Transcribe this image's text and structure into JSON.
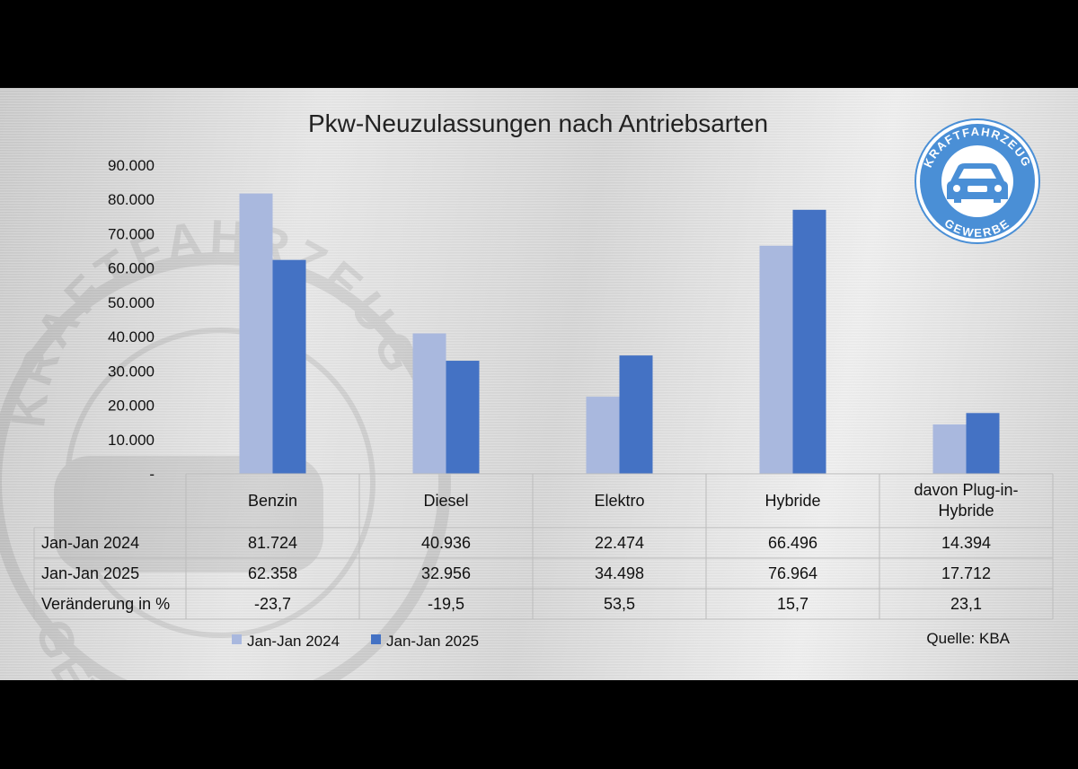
{
  "chart_data": {
    "type": "bar",
    "title": "Pkw-Neuzulassungen nach Antriebsarten",
    "categories": [
      [
        "Benzin"
      ],
      [
        "Diesel"
      ],
      [
        "Elektro"
      ],
      [
        "Hybride"
      ],
      [
        "davon Plug-in-",
        "Hybride"
      ]
    ],
    "series": [
      {
        "name": "Jan-Jan 2024",
        "values": [
          81724,
          40936,
          22474,
          66496,
          14394
        ],
        "labels": [
          "81.724",
          "40.936",
          "22.474",
          "66.496",
          "14.394"
        ],
        "color": "#a9b8de"
      },
      {
        "name": "Jan-Jan 2025",
        "values": [
          62358,
          32956,
          34498,
          76964,
          17712
        ],
        "labels": [
          "62.358",
          "32.956",
          "34.498",
          "76.964",
          "17.712"
        ],
        "color": "#4472c4"
      }
    ],
    "change_row": {
      "name": "Veränderung in %",
      "values": [
        "-23,7",
        "-19,5",
        "53,5",
        "15,7",
        "23,1"
      ]
    },
    "ylim": [
      0,
      90000
    ],
    "y_ticks": [
      {
        "value": 0,
        "label": "-"
      },
      {
        "value": 10000,
        "label": "10.000"
      },
      {
        "value": 20000,
        "label": "20.000"
      },
      {
        "value": 30000,
        "label": "30.000"
      },
      {
        "value": 40000,
        "label": "40.000"
      },
      {
        "value": 50000,
        "label": "50.000"
      },
      {
        "value": 60000,
        "label": "60.000"
      },
      {
        "value": 70000,
        "label": "70.000"
      },
      {
        "value": 80000,
        "label": "80.000"
      },
      {
        "value": 90000,
        "label": "90.000"
      }
    ],
    "grid": false,
    "legend": "bottom",
    "source": "Quelle: KBA"
  },
  "logo": {
    "text_top": "KRAFTFAHRZEUG",
    "text_bottom": "GEWERBE",
    "color": "#4a8fd6"
  },
  "watermark": {
    "text_top": "KRAFTFAHRZEUG",
    "text_bottom": "GEWERBE"
  }
}
